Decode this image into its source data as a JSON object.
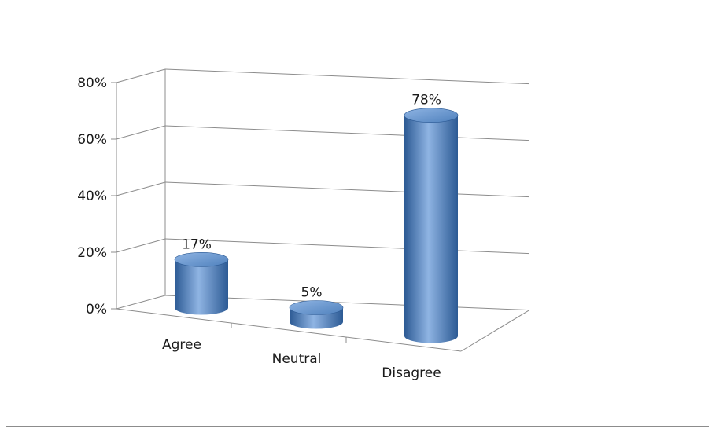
{
  "chart_data": {
    "type": "bar",
    "style": "3d-cylinder",
    "title": "",
    "xlabel": "",
    "ylabel": "",
    "categories": [
      "Agree",
      "Neutral",
      "Disagree"
    ],
    "values": [
      17,
      5,
      78
    ],
    "data_labels": [
      "17%",
      "5%",
      "78%"
    ],
    "ylim": [
      0,
      80
    ],
    "yticks": [
      0,
      20,
      40,
      60,
      80
    ],
    "ytick_labels": [
      "0%",
      "20%",
      "40%",
      "60%",
      "80%"
    ],
    "grid": true,
    "legend": "none",
    "bar_color": "#4f81bd",
    "bar_color_dark": "#2c5a94",
    "bar_color_light": "#8fb4e3",
    "gridline_color": "#8c8c8c"
  }
}
